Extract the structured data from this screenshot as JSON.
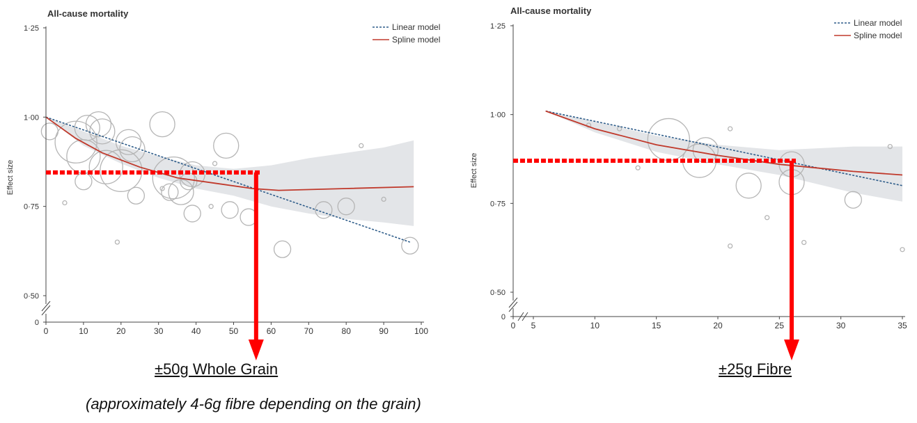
{
  "chart_data": [
    {
      "type": "scatter",
      "title": "All-cause mortality",
      "ylabel": "Effect size",
      "xlabel": "",
      "xlim": [
        0,
        100
      ],
      "ylim": [
        0.5,
        1.25
      ],
      "y_axis_break": true,
      "x_ticks": [
        "0",
        "10",
        "20",
        "30",
        "40",
        "50",
        "60",
        "70",
        "80",
        "90",
        "100"
      ],
      "y_ticks": [
        "0",
        "0·50",
        "0·75",
        "1·00",
        "1·25"
      ],
      "legend": [
        "Linear model",
        "Spline model"
      ],
      "legend_position": "top-right",
      "series": [
        {
          "name": "Linear model",
          "style": "dotted",
          "color": "#2f5d8a",
          "points": [
            [
              0,
              1.0
            ],
            [
              97,
              0.65
            ]
          ]
        },
        {
          "name": "Spline model",
          "style": "solid",
          "color": "#c0392b",
          "points": [
            [
              0,
              1.0
            ],
            [
              8,
              0.94
            ],
            [
              15,
              0.9
            ],
            [
              25,
              0.86
            ],
            [
              35,
              0.83
            ],
            [
              45,
              0.815
            ],
            [
              55,
              0.8
            ],
            [
              62,
              0.795
            ],
            [
              80,
              0.8
            ],
            [
              98,
              0.805
            ]
          ]
        }
      ],
      "confidence_band": {
        "x": [
          0,
          10,
          20,
          30,
          40,
          50,
          60,
          70,
          80,
          90,
          98
        ],
        "upper": [
          1.0,
          0.96,
          0.92,
          0.89,
          0.865,
          0.855,
          0.865,
          0.885,
          0.9,
          0.915,
          0.935
        ],
        "lower": [
          1.0,
          0.92,
          0.87,
          0.83,
          0.8,
          0.78,
          0.75,
          0.73,
          0.715,
          0.705,
          0.695
        ]
      },
      "bubbles": [
        {
          "x": 1,
          "y": 0.96,
          "s": 2
        },
        {
          "x": 5,
          "y": 0.76,
          "s": 1
        },
        {
          "x": 8,
          "y": 0.93,
          "s": 5
        },
        {
          "x": 10,
          "y": 0.82,
          "s": 2
        },
        {
          "x": 10,
          "y": 0.89,
          "s": 4
        },
        {
          "x": 11,
          "y": 0.97,
          "s": 3
        },
        {
          "x": 14,
          "y": 0.98,
          "s": 3
        },
        {
          "x": 15,
          "y": 0.96,
          "s": 3
        },
        {
          "x": 16,
          "y": 0.86,
          "s": 4
        },
        {
          "x": 19,
          "y": 0.65,
          "s": 1
        },
        {
          "x": 20,
          "y": 0.85,
          "s": 5
        },
        {
          "x": 22,
          "y": 0.93,
          "s": 3
        },
        {
          "x": 23,
          "y": 0.91,
          "s": 3
        },
        {
          "x": 24,
          "y": 0.78,
          "s": 2
        },
        {
          "x": 31,
          "y": 0.8,
          "s": 1
        },
        {
          "x": 31,
          "y": 0.98,
          "s": 3
        },
        {
          "x": 33,
          "y": 0.79,
          "s": 2
        },
        {
          "x": 34,
          "y": 0.83,
          "s": 5
        },
        {
          "x": 36,
          "y": 0.79,
          "s": 3
        },
        {
          "x": 38,
          "y": 0.82,
          "s": 2
        },
        {
          "x": 39,
          "y": 0.84,
          "s": 3
        },
        {
          "x": 39,
          "y": 0.73,
          "s": 2
        },
        {
          "x": 44,
          "y": 0.75,
          "s": 1
        },
        {
          "x": 45,
          "y": 0.87,
          "s": 1
        },
        {
          "x": 48,
          "y": 0.92,
          "s": 3
        },
        {
          "x": 49,
          "y": 0.74,
          "s": 2
        },
        {
          "x": 54,
          "y": 0.72,
          "s": 2
        },
        {
          "x": 63,
          "y": 0.63,
          "s": 2
        },
        {
          "x": 74,
          "y": 0.74,
          "s": 2
        },
        {
          "x": 80,
          "y": 0.75,
          "s": 2
        },
        {
          "x": 84,
          "y": 0.92,
          "s": 1
        },
        {
          "x": 90,
          "y": 0.77,
          "s": 1
        },
        {
          "x": 97,
          "y": 0.64,
          "s": 2
        }
      ],
      "annotation": {
        "x": 56,
        "y": 0.845,
        "color": "#ff0000"
      }
    },
    {
      "type": "scatter",
      "title": "All-cause mortality",
      "ylabel": "Effect size",
      "xlabel": "",
      "xlim": [
        5,
        35
      ],
      "ylim": [
        0.5,
        1.25
      ],
      "y_axis_break": true,
      "x_axis_break": true,
      "x_ticks": [
        "0",
        "5",
        "10",
        "15",
        "20",
        "25",
        "30",
        "35"
      ],
      "y_ticks": [
        "0",
        "0·50",
        "0·75",
        "1·00",
        "1·25"
      ],
      "legend": [
        "Linear model",
        "Spline model"
      ],
      "legend_position": "top-right",
      "series": [
        {
          "name": "Linear model",
          "style": "dotted",
          "color": "#2f5d8a",
          "points": [
            [
              6,
              1.01
            ],
            [
              35,
              0.8
            ]
          ]
        },
        {
          "name": "Spline model",
          "style": "solid",
          "color": "#c0392b",
          "points": [
            [
              6,
              1.01
            ],
            [
              10,
              0.96
            ],
            [
              15,
              0.915
            ],
            [
              20,
              0.885
            ],
            [
              25,
              0.86
            ],
            [
              28,
              0.85
            ],
            [
              31,
              0.84
            ],
            [
              35,
              0.83
            ]
          ]
        }
      ],
      "confidence_band": {
        "x": [
          6,
          10,
          15,
          20,
          25,
          28,
          31,
          35
        ],
        "upper": [
          1.01,
          0.98,
          0.94,
          0.915,
          0.9,
          0.905,
          0.91,
          0.91
        ],
        "lower": [
          1.01,
          0.95,
          0.895,
          0.86,
          0.83,
          0.805,
          0.78,
          0.755
        ]
      },
      "bubbles": [
        {
          "x": 9.5,
          "y": 0.97,
          "s": 1
        },
        {
          "x": 12,
          "y": 0.96,
          "s": 1
        },
        {
          "x": 13.5,
          "y": 0.85,
          "s": 1
        },
        {
          "x": 16,
          "y": 0.93,
          "s": 5
        },
        {
          "x": 18.5,
          "y": 0.87,
          "s": 4
        },
        {
          "x": 19,
          "y": 0.9,
          "s": 3
        },
        {
          "x": 21,
          "y": 0.96,
          "s": 1
        },
        {
          "x": 21,
          "y": 0.63,
          "s": 1
        },
        {
          "x": 22.5,
          "y": 0.8,
          "s": 3
        },
        {
          "x": 24,
          "y": 0.71,
          "s": 1
        },
        {
          "x": 26,
          "y": 0.86,
          "s": 3
        },
        {
          "x": 26,
          "y": 0.81,
          "s": 3
        },
        {
          "x": 27,
          "y": 0.64,
          "s": 1
        },
        {
          "x": 31,
          "y": 0.76,
          "s": 2
        },
        {
          "x": 34,
          "y": 0.91,
          "s": 1
        },
        {
          "x": 35,
          "y": 0.62,
          "s": 1
        }
      ],
      "annotation": {
        "x": 26,
        "y": 0.87,
        "color": "#ff0000"
      }
    }
  ],
  "captions": {
    "left_main": "±50g Whole Grain",
    "left_sub": "(approximately 4-6g fibre depending on the grain)",
    "right_main": "±25g Fibre"
  }
}
